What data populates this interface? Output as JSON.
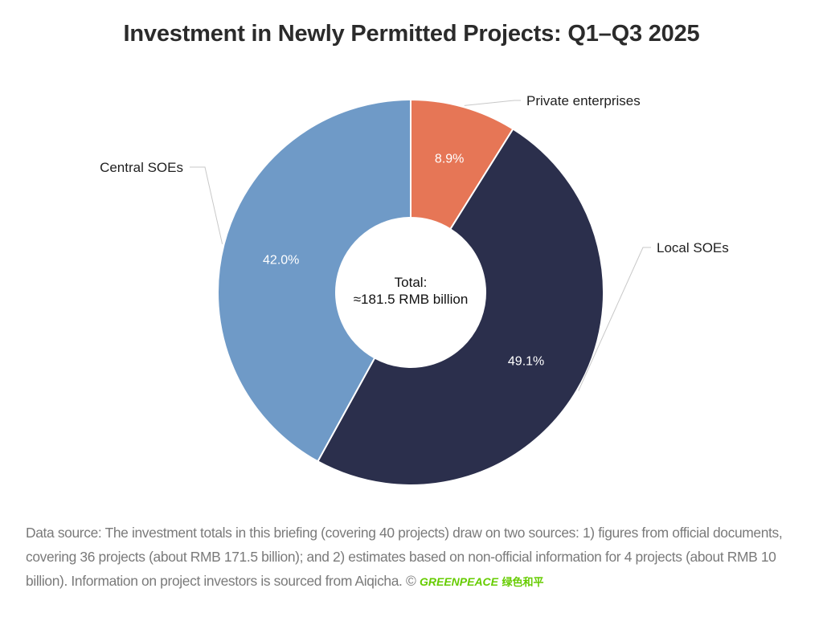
{
  "chart_data": {
    "type": "pie",
    "variant": "donut",
    "title": "Investment in Newly Permitted Projects: Q1–Q3 2025",
    "start_angle": "12 o'clock, clockwise",
    "slices": [
      {
        "name": "Private enterprises",
        "value": 8.9,
        "label": "8.9%",
        "color": "#e67656"
      },
      {
        "name": "Local SOEs",
        "value": 49.1,
        "label": "49.1%",
        "color": "#2b2f4c"
      },
      {
        "name": "Central SOEs",
        "value": 42.0,
        "label": "42.0%",
        "color": "#6f9ac7"
      }
    ],
    "center_label": [
      "Total:",
      "≈181.5 RMB billion"
    ],
    "legend": "none (callout labels)"
  },
  "footer": {
    "text": "Data source: The investment totals in this briefing (covering 40 projects) draw on two sources: 1) figures from official documents, covering 36 projects (about RMB 171.5 billion); and 2) estimates based on non-official information for 4 projects (about RMB 10 billion).  Information on project investors is sourced from Aiqicha.",
    "copyright_symbol": "©",
    "brand": "GREENPEACE",
    "brand_cn": "绿色和平",
    "brand_color": "#66cc00"
  }
}
